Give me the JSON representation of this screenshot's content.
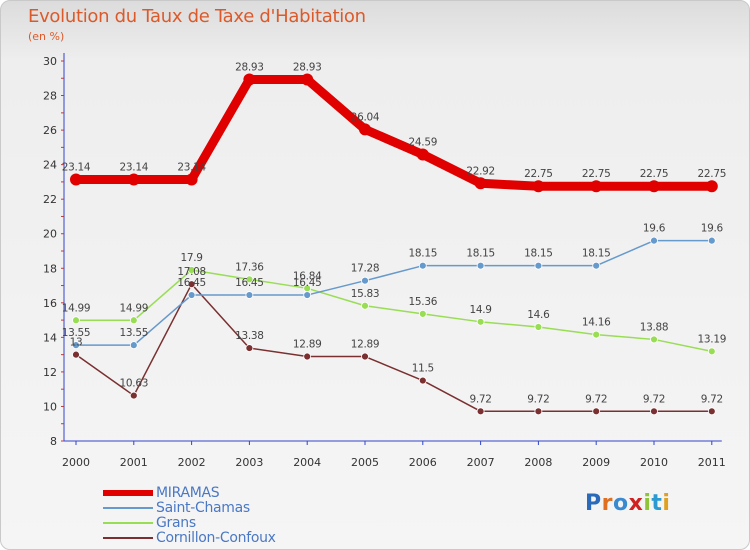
{
  "header": {
    "title": "Evolution du Taux de Taxe d'Habitation",
    "unit": "(en %)"
  },
  "logo": {
    "text": "Proxiti"
  },
  "colors": {
    "title": "#dc5a2a",
    "axis": "#3344cc",
    "legend_text": "#4a78c4"
  },
  "chart_data": {
    "type": "line",
    "title": "Evolution du Taux de Taxe d'Habitation",
    "subtitle": "(en %)",
    "categories": [
      "2000",
      "2001",
      "2002",
      "2003",
      "2004",
      "2005",
      "2006",
      "2007",
      "2008",
      "2009",
      "2010",
      "2011"
    ],
    "ylim": [
      8,
      30
    ],
    "yticks": [
      8,
      10,
      12,
      14,
      16,
      18,
      20,
      22,
      24,
      26,
      28,
      30
    ],
    "grid": "none",
    "legend_position": "bottom-left",
    "series": [
      {
        "name": "MIRAMAS",
        "color": "#e00000",
        "values": [
          23.14,
          23.14,
          23.14,
          28.93,
          28.93,
          26.04,
          24.59,
          22.92,
          22.75,
          22.75,
          22.75,
          22.75
        ],
        "labels": [
          "23.14",
          "23.14",
          "23.14",
          "28.93",
          "28.93",
          "26.04",
          "24.59",
          "22.92",
          "22.75",
          "22.75",
          "22.75",
          "22.75"
        ]
      },
      {
        "name": "Saint-Chamas",
        "color": "#6699cc",
        "values": [
          13.55,
          13.55,
          16.45,
          16.45,
          16.45,
          17.28,
          18.15,
          18.15,
          18.15,
          18.15,
          19.6,
          19.6
        ],
        "labels": [
          "13.55",
          "13.55",
          "16.45",
          "16.45",
          "16.45",
          "17.28",
          "18.15",
          "18.15",
          "18.15",
          "18.15",
          "19.6",
          "19.6"
        ]
      },
      {
        "name": "Grans",
        "color": "#99dd55",
        "values": [
          14.99,
          14.99,
          17.9,
          17.36,
          16.84,
          15.83,
          15.36,
          14.9,
          14.6,
          14.16,
          13.88,
          13.19
        ],
        "labels": [
          "14.99",
          "14.99",
          "17.9",
          "17.36",
          "16.84",
          "15.83",
          "15.36",
          "14.9",
          "14.6",
          "14.16",
          "13.88",
          "13.19"
        ]
      },
      {
        "name": "Cornillon-Confoux",
        "color": "#7a3030",
        "values": [
          13,
          10.63,
          17.08,
          13.38,
          12.89,
          12.89,
          11.5,
          9.72,
          9.72,
          9.72,
          9.72,
          9.72
        ],
        "labels": [
          "13",
          "10.63",
          "17.08",
          "13.38",
          "12.89",
          "12.89",
          "11.5",
          "9.72",
          "9.72",
          "9.72",
          "9.72",
          "9.72"
        ]
      }
    ]
  }
}
